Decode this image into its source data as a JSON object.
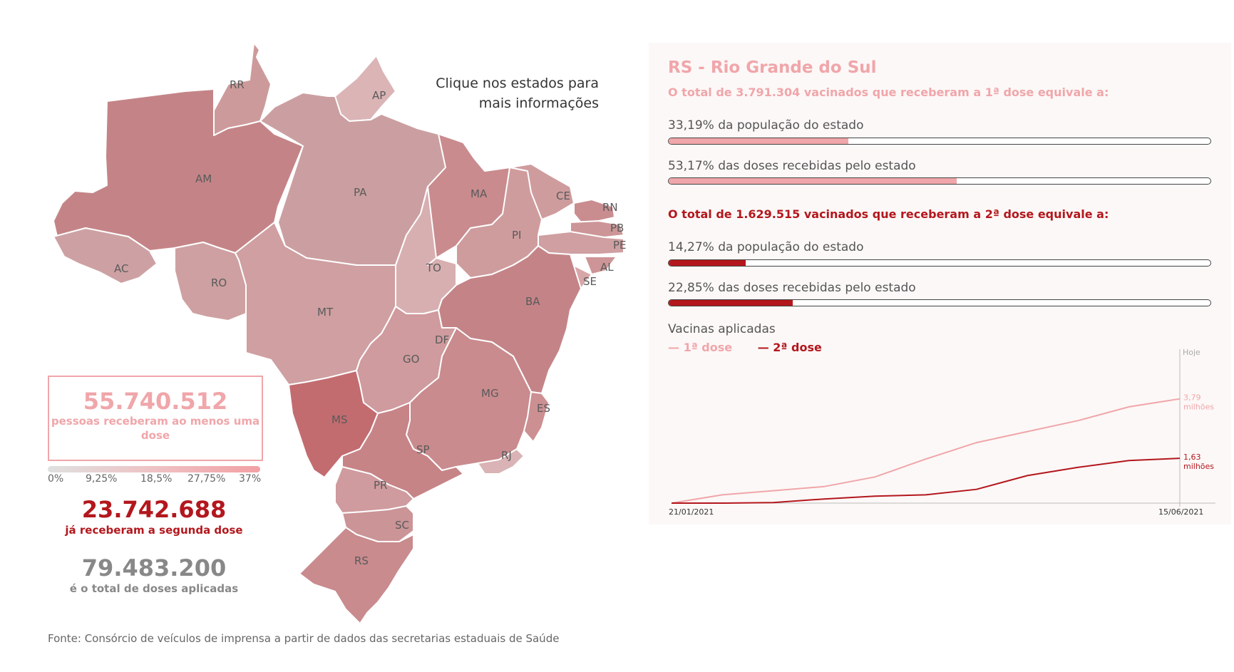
{
  "map": {
    "instruction": "Clique nos estados para mais informações",
    "states": [
      {
        "code": "RR",
        "label": "RR"
      },
      {
        "code": "AP",
        "label": "AP"
      },
      {
        "code": "AM",
        "label": "AM"
      },
      {
        "code": "PA",
        "label": "PA"
      },
      {
        "code": "MA",
        "label": "MA"
      },
      {
        "code": "CE",
        "label": "CE"
      },
      {
        "code": "RN",
        "label": "RN"
      },
      {
        "code": "PB",
        "label": "PB"
      },
      {
        "code": "PE",
        "label": "PE"
      },
      {
        "code": "AL",
        "label": "AL"
      },
      {
        "code": "SE",
        "label": "SE"
      },
      {
        "code": "PI",
        "label": "PI"
      },
      {
        "code": "AC",
        "label": "AC"
      },
      {
        "code": "RO",
        "label": "RO"
      },
      {
        "code": "TO",
        "label": "TO"
      },
      {
        "code": "BA",
        "label": "BA"
      },
      {
        "code": "MT",
        "label": "MT"
      },
      {
        "code": "DF",
        "label": "DF"
      },
      {
        "code": "GO",
        "label": "GO"
      },
      {
        "code": "MG",
        "label": "MG"
      },
      {
        "code": "ES",
        "label": "ES"
      },
      {
        "code": "MS",
        "label": "MS"
      },
      {
        "code": "SP",
        "label": "SP"
      },
      {
        "code": "RJ",
        "label": "RJ"
      },
      {
        "code": "PR",
        "label": "PR"
      },
      {
        "code": "SC",
        "label": "SC"
      },
      {
        "code": "RS",
        "label": "RS"
      }
    ]
  },
  "summary": {
    "first_dose_total": "55.740.512",
    "first_dose_label": "pessoas receberam ao menos uma dose",
    "second_dose_total": "23.742.688",
    "second_dose_label": "já receberam a segunda dose",
    "total_doses": "79.483.200",
    "total_doses_label": "é o total de doses aplicadas"
  },
  "legend": {
    "ticks": [
      "0%",
      "9,25%",
      "18,5%",
      "27,75%",
      "37%"
    ]
  },
  "source": "Fonte: Consórcio de veículos de imprensa a partir de dados das secretarias estaduais de Saúde",
  "panel": {
    "title": "RS - Rio Grande do Sul",
    "first_heading": "O total de 3.791.304 vacinados que receberam a 1ª dose equivale a:",
    "first_population_label": "33,19% da população do estado",
    "first_population_pct": 33.19,
    "first_doses_label": "53,17% das doses recebidas pelo estado",
    "first_doses_pct": 53.17,
    "second_heading": "O total de 1.629.515 vacinados que receberam a 2ª dose equivale a:",
    "second_population_label": "14,27% da população do estado",
    "second_population_pct": 14.27,
    "second_doses_label": "22,85% das doses recebidas pelo estado",
    "second_doses_pct": 22.85
  },
  "colors": {
    "first": "#f0a6aa",
    "second": "#b3171d",
    "grey": "#888888"
  },
  "chart_data": {
    "type": "line",
    "title": "Vacinas aplicadas",
    "legend": [
      "— 1ª dose",
      "— 2ª dose"
    ],
    "today_label": "Hoje",
    "x_start_label": "21/01/2021",
    "x_end_label": "15/06/2021",
    "ylim": [
      0,
      4.3
    ],
    "x": [
      "2021-01-21",
      "2021-02-05",
      "2021-02-20",
      "2021-03-07",
      "2021-03-22",
      "2021-04-06",
      "2021-04-21",
      "2021-05-06",
      "2021-05-21",
      "2021-06-05",
      "2021-06-15"
    ],
    "series": [
      {
        "name": "1ª dose",
        "values": [
          0.0,
          0.3,
          0.45,
          0.6,
          0.95,
          1.6,
          2.2,
          2.6,
          3.0,
          3.5,
          3.79
        ],
        "end_label": "3,79 milhões"
      },
      {
        "name": "2ª dose",
        "values": [
          0.0,
          0.0,
          0.02,
          0.15,
          0.25,
          0.3,
          0.5,
          1.0,
          1.3,
          1.55,
          1.63
        ],
        "end_label": "1,63 milhões"
      }
    ]
  }
}
